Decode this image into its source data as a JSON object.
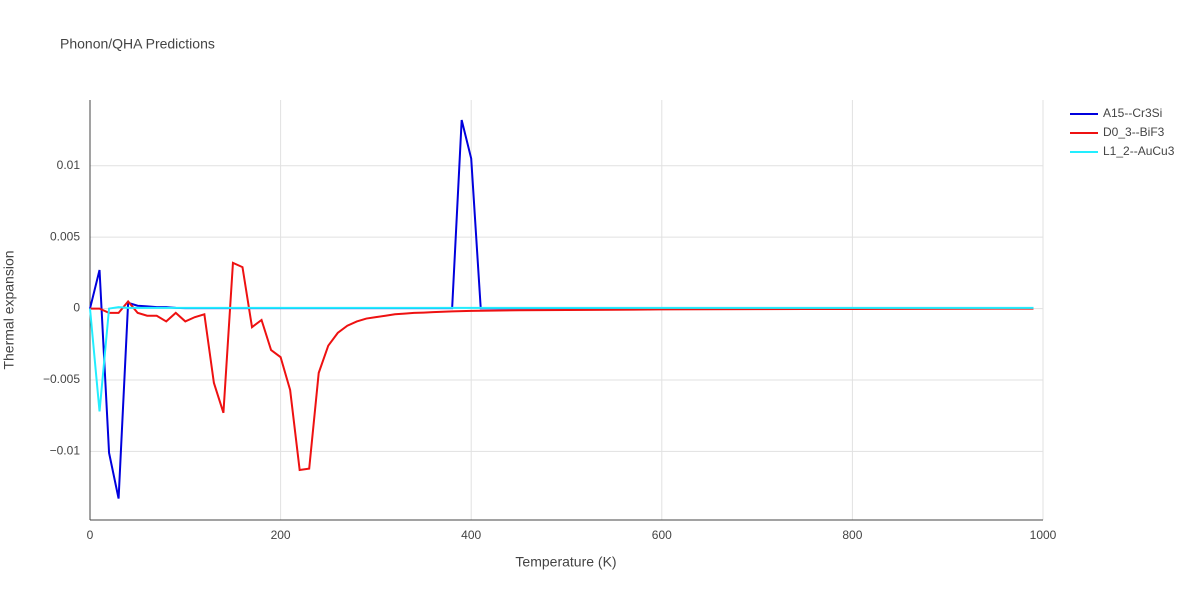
{
  "chart_data": {
    "type": "line",
    "title": "Phonon/QHA Predictions",
    "x_label": "Temperature (K)",
    "y_label": "Thermal expansion",
    "xlim": [
      0,
      1000
    ],
    "xticks": [
      0,
      200,
      400,
      600,
      800,
      1000
    ],
    "ylim": [
      -0.0148,
      0.0146
    ],
    "yticks": [
      {
        "value": -0.01,
        "label": "−0.01"
      },
      {
        "value": -0.005,
        "label": "−0.005"
      },
      0,
      0.005,
      0.01
    ],
    "grid": true,
    "legend": "right",
    "x": [
      0,
      10,
      20,
      30,
      40,
      50,
      60,
      70,
      80,
      90,
      100,
      110,
      120,
      130,
      140,
      150,
      160,
      170,
      180,
      190,
      200,
      210,
      220,
      230,
      240,
      250,
      260,
      270,
      280,
      290,
      300,
      310,
      320,
      330,
      340,
      350,
      360,
      370,
      380,
      390,
      400,
      410,
      420,
      450,
      500,
      550,
      600,
      650,
      700,
      750,
      800,
      850,
      900,
      950,
      990
    ],
    "series": [
      {
        "name": "A15--Cr3Si",
        "color": "#0000dd",
        "values": [
          0,
          0.0027,
          -0.0101,
          -0.0133,
          0.0004,
          0.0002,
          0.00015,
          0.0001,
          0.0001,
          5e-05,
          3e-05,
          3e-05,
          3e-05,
          3e-05,
          3e-05,
          3e-05,
          3e-05,
          3e-05,
          3e-05,
          3e-05,
          3e-05,
          3e-05,
          3e-05,
          3e-05,
          3e-05,
          3e-05,
          3e-05,
          3e-05,
          3e-05,
          3e-05,
          3e-05,
          3e-05,
          3e-05,
          3e-05,
          3e-05,
          3e-05,
          3e-05,
          3e-05,
          3e-05,
          0.0132,
          0.0105,
          2e-05,
          2e-05,
          2e-05,
          2e-05,
          2e-05,
          2e-05,
          2e-05,
          2e-05,
          2e-05,
          2e-05,
          2e-05,
          2e-05,
          2e-05,
          2e-05
        ]
      },
      {
        "name": "D0_3--BiF3",
        "color": "#ee1111",
        "values": [
          0,
          0,
          -0.0003,
          -0.0003,
          0.0005,
          -0.0003,
          -0.0005,
          -0.0005,
          -0.0009,
          -0.0003,
          -0.0009,
          -0.0006,
          -0.0004,
          -0.0052,
          -0.0073,
          0.0032,
          0.0029,
          -0.0013,
          -0.0008,
          -0.0029,
          -0.0034,
          -0.0057,
          -0.0113,
          -0.0112,
          -0.0045,
          -0.0026,
          -0.0017,
          -0.0012,
          -0.0009,
          -0.0007,
          -0.0006,
          -0.0005,
          -0.0004,
          -0.00035,
          -0.0003,
          -0.00028,
          -0.00025,
          -0.00022,
          -0.0002,
          -0.00018,
          -0.00016,
          -0.00015,
          -0.00014,
          -0.00012,
          -0.0001,
          -8e-05,
          -6e-05,
          -5e-05,
          -4e-05,
          -3e-05,
          -3e-05,
          -2e-05,
          -1e-05,
          0,
          0
        ]
      },
      {
        "name": "L1_2--AuCu3",
        "color": "#22eeff",
        "values": [
          0,
          -0.0072,
          0,
          0.0001,
          5e-05,
          5e-05,
          5e-05,
          5e-05,
          5e-05,
          5e-05,
          5e-05,
          5e-05,
          5e-05,
          5e-05,
          5e-05,
          5e-05,
          5e-05,
          5e-05,
          5e-05,
          5e-05,
          5e-05,
          5e-05,
          5e-05,
          5e-05,
          5e-05,
          5e-05,
          5e-05,
          5e-05,
          5e-05,
          5e-05,
          5e-05,
          5e-05,
          5e-05,
          5e-05,
          5e-05,
          5e-05,
          5e-05,
          5e-05,
          5e-05,
          5e-05,
          5e-05,
          5e-05,
          5e-05,
          5e-05,
          5e-05,
          5e-05,
          5e-05,
          5e-05,
          5e-05,
          5e-05,
          5e-05,
          5e-05,
          5e-05,
          5e-05,
          5e-05
        ]
      }
    ]
  }
}
